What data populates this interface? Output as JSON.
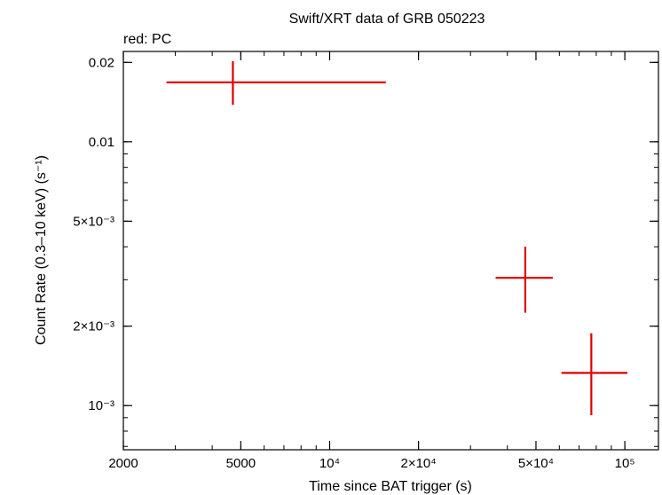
{
  "chart_data": {
    "type": "scatter",
    "title": "Swift/XRT data of GRB 050223",
    "subtitle": "red: PC",
    "xlabel": "Time since BAT trigger (s)",
    "ylabel": "Count Rate (0.3–10 keV) (s⁻¹)",
    "x_scale": "log",
    "y_scale": "log",
    "xlim": [
      2000,
      130000
    ],
    "ylim": [
      0.00068,
      0.022
    ],
    "x_ticks": [
      {
        "value": 2000,
        "label": "2000"
      },
      {
        "value": 5000,
        "label": "5000"
      },
      {
        "value": 10000,
        "label": "10⁴"
      },
      {
        "value": 20000,
        "label": "2×10⁴"
      },
      {
        "value": 50000,
        "label": "5×10⁴"
      },
      {
        "value": 100000,
        "label": "10⁵"
      }
    ],
    "y_ticks": [
      {
        "value": 0.02,
        "label": "0.02"
      },
      {
        "value": 0.01,
        "label": "0.01"
      },
      {
        "value": 0.005,
        "label": "5×10⁻³"
      },
      {
        "value": 0.002,
        "label": "2×10⁻³"
      },
      {
        "value": 0.001,
        "label": "10⁻³"
      }
    ],
    "series": [
      {
        "color": "#e00000",
        "points": [
          {
            "x": 4700,
            "xlo": 2800,
            "xhi": 15500,
            "y": 0.0168,
            "ylo": 0.0138,
            "yhi": 0.0202
          },
          {
            "x": 46000,
            "xlo": 36500,
            "xhi": 57000,
            "y": 0.00305,
            "ylo": 0.00225,
            "yhi": 0.004
          },
          {
            "x": 77000,
            "xlo": 61000,
            "xhi": 102000,
            "y": 0.00133,
            "ylo": 0.00092,
            "yhi": 0.00188
          }
        ]
      }
    ]
  }
}
